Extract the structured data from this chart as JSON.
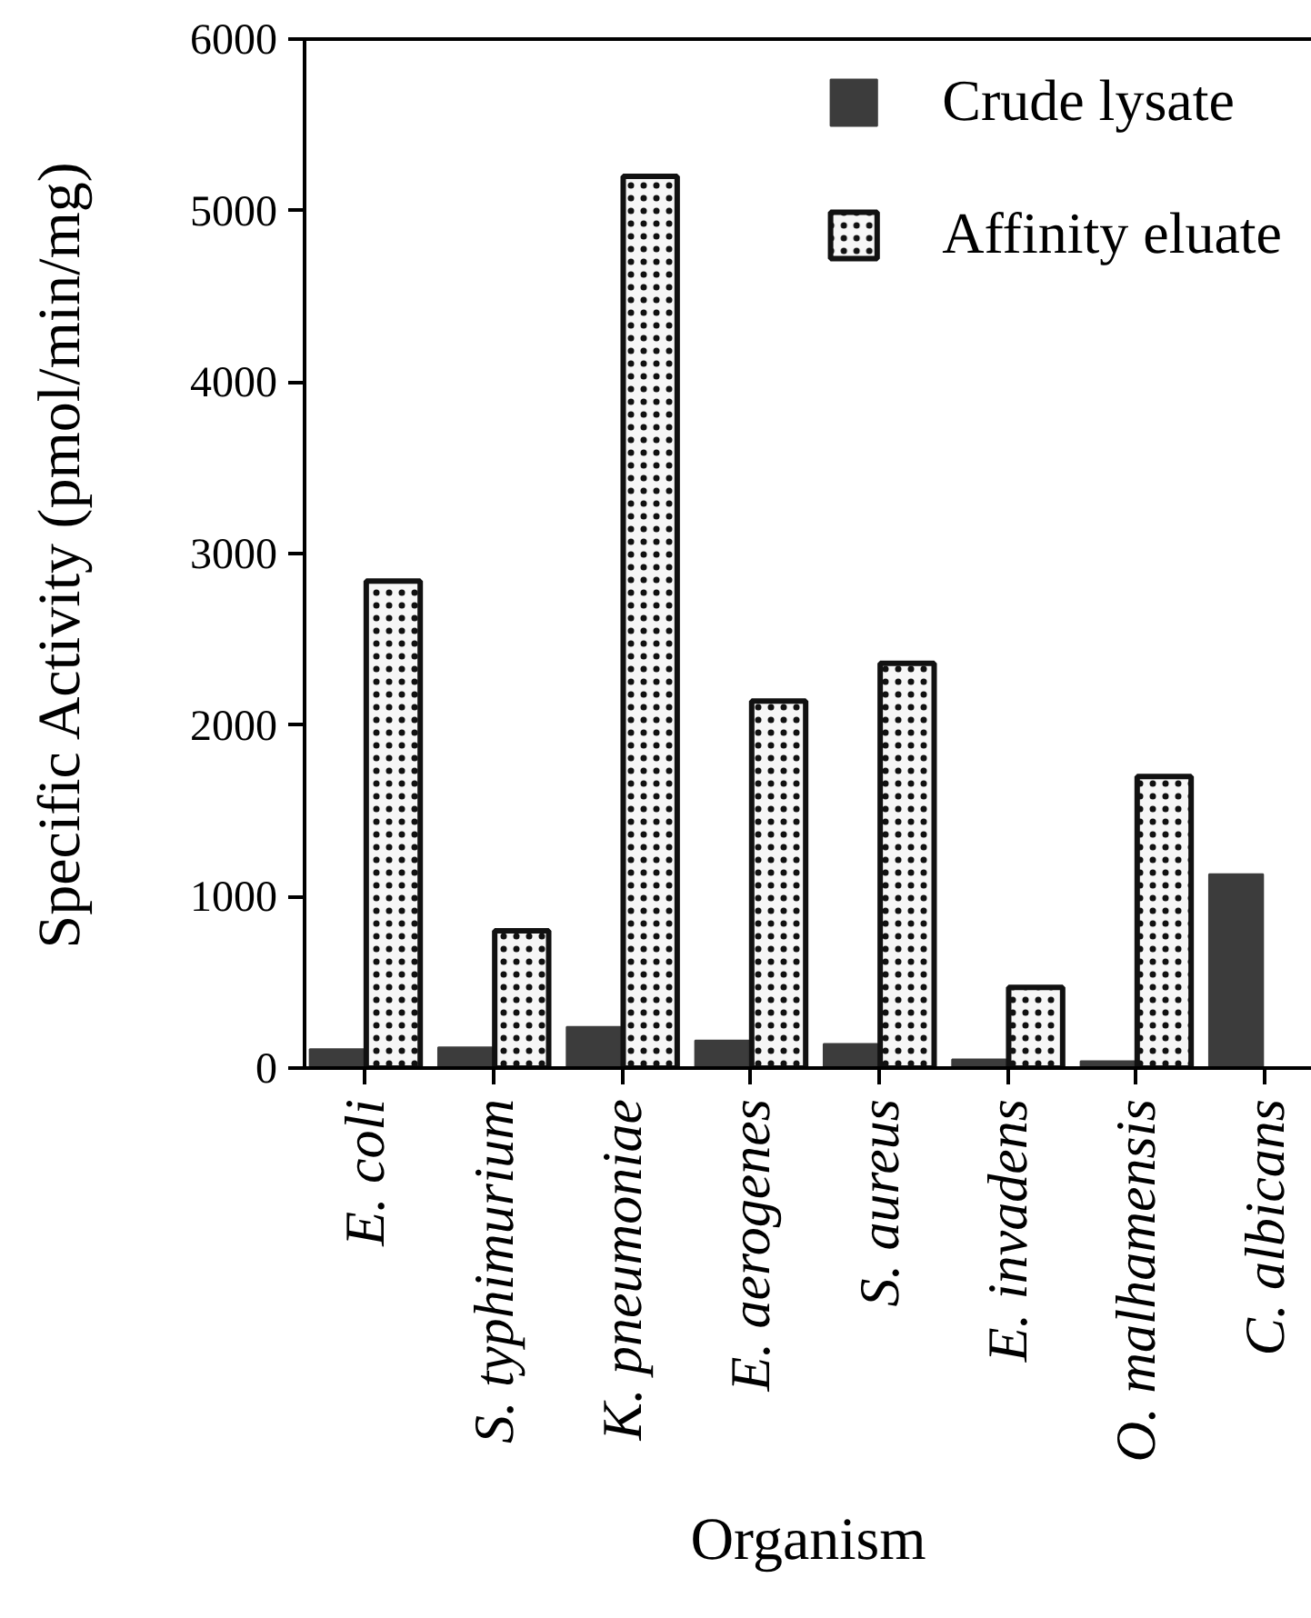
{
  "chart_data": {
    "type": "bar",
    "xlabel": "Organism",
    "ylabel": "Specific Activity (pmol/min/mg)",
    "categories": [
      "E. coli",
      "S. typhimurium",
      "K. pneumoniae",
      "E. aerogenes",
      "S. aureus",
      "E. invadens",
      "O. malhamensis",
      "C. albicans"
    ],
    "series": [
      {
        "name": "Crude lysate",
        "color": "#3c3c3c",
        "values": [
          110,
          120,
          240,
          160,
          140,
          50,
          40,
          1130
        ]
      },
      {
        "name": "Affinity eluate",
        "color": "#f6f6f6",
        "values": [
          2840,
          800,
          5200,
          2140,
          2360,
          470,
          1700,
          null
        ]
      }
    ],
    "ylim": [
      0,
      6000
    ],
    "yticks": [
      0,
      1000,
      2000,
      3000,
      4000,
      5000,
      6000
    ],
    "legend": "top right"
  }
}
